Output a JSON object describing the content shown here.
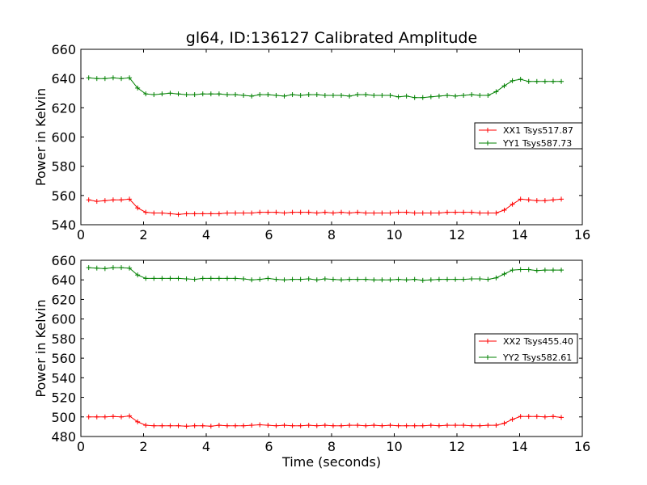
{
  "title": "gl64, ID:136127 Calibrated Amplitude",
  "colors": {
    "XX": "#ff0000",
    "YY": "#008000"
  },
  "chart_data": [
    {
      "type": "line",
      "xlabel": "",
      "ylabel": "Power in Kelvin",
      "xlim": [
        0,
        16
      ],
      "ylim": [
        540,
        660
      ],
      "xticks": [
        0,
        2,
        4,
        6,
        8,
        10,
        12,
        14,
        16
      ],
      "yticks": [
        540,
        560,
        580,
        600,
        620,
        640,
        660
      ],
      "legend_position": "center-right",
      "x": [
        0.25,
        0.51,
        0.77,
        1.03,
        1.29,
        1.55,
        1.81,
        2.07,
        2.33,
        2.59,
        2.85,
        3.11,
        3.37,
        3.63,
        3.89,
        4.15,
        4.41,
        4.67,
        4.93,
        5.19,
        5.45,
        5.71,
        5.97,
        6.23,
        6.49,
        6.75,
        7.01,
        7.27,
        7.53,
        7.79,
        8.05,
        8.31,
        8.57,
        8.83,
        9.09,
        9.35,
        9.61,
        9.87,
        10.13,
        10.39,
        10.65,
        10.91,
        11.17,
        11.43,
        11.69,
        11.95,
        12.21,
        12.47,
        12.73,
        12.99,
        13.25,
        13.51,
        13.77,
        14.03,
        14.29,
        14.55,
        14.81,
        15.07,
        15.33
      ],
      "series": [
        {
          "name": "XX1 Tsys517.87",
          "color": "#ff0000",
          "values": [
            557.0,
            556.0,
            556.5,
            557.0,
            557.0,
            557.5,
            551.5,
            548.5,
            548.0,
            548.0,
            547.5,
            547.0,
            547.5,
            547.5,
            547.5,
            547.5,
            547.5,
            548.0,
            548.0,
            548.0,
            548.0,
            548.5,
            548.5,
            548.5,
            548.0,
            548.5,
            548.5,
            548.5,
            548.0,
            548.5,
            548.0,
            548.5,
            548.0,
            548.5,
            548.0,
            548.0,
            548.0,
            548.0,
            548.5,
            548.5,
            548.0,
            548.0,
            548.0,
            548.0,
            548.5,
            548.5,
            548.5,
            548.5,
            548.0,
            548.0,
            548.0,
            550.0,
            554.0,
            557.5,
            557.0,
            556.5,
            556.5,
            557.0,
            557.5
          ]
        },
        {
          "name": "YY1 Tsys587.73",
          "color": "#008000",
          "values": [
            640.5,
            640.0,
            640.0,
            640.5,
            640.0,
            640.5,
            633.5,
            629.5,
            629.0,
            629.5,
            630.0,
            629.5,
            629.0,
            629.0,
            629.5,
            629.5,
            629.5,
            629.0,
            629.0,
            628.5,
            628.0,
            629.0,
            629.0,
            628.5,
            628.0,
            629.0,
            628.5,
            629.0,
            629.0,
            628.5,
            628.5,
            628.5,
            628.0,
            629.0,
            629.0,
            628.5,
            628.5,
            628.5,
            627.5,
            628.0,
            627.0,
            627.0,
            627.5,
            628.0,
            628.5,
            628.0,
            628.5,
            629.0,
            628.5,
            628.5,
            631.0,
            635.0,
            638.5,
            639.5,
            638.0,
            638.0,
            638.0,
            638.0,
            638.0
          ]
        }
      ]
    },
    {
      "type": "line",
      "xlabel": "Time (seconds)",
      "ylabel": "Power in Kelvin",
      "xlim": [
        0,
        16
      ],
      "ylim": [
        480,
        660
      ],
      "xticks": [
        0,
        2,
        4,
        6,
        8,
        10,
        12,
        14,
        16
      ],
      "yticks": [
        480,
        500,
        520,
        540,
        560,
        580,
        600,
        620,
        640,
        660
      ],
      "legend_position": "center-right",
      "x": [
        0.25,
        0.51,
        0.77,
        1.03,
        1.29,
        1.55,
        1.81,
        2.07,
        2.33,
        2.59,
        2.85,
        3.11,
        3.37,
        3.63,
        3.89,
        4.15,
        4.41,
        4.67,
        4.93,
        5.19,
        5.45,
        5.71,
        5.97,
        6.23,
        6.49,
        6.75,
        7.01,
        7.27,
        7.53,
        7.79,
        8.05,
        8.31,
        8.57,
        8.83,
        9.09,
        9.35,
        9.61,
        9.87,
        10.13,
        10.39,
        10.65,
        10.91,
        11.17,
        11.43,
        11.69,
        11.95,
        12.21,
        12.47,
        12.73,
        12.99,
        13.25,
        13.51,
        13.77,
        14.03,
        14.29,
        14.55,
        14.81,
        15.07,
        15.33
      ],
      "series": [
        {
          "name": "XX2 Tsys455.40",
          "color": "#ff0000",
          "values": [
            500.0,
            500.0,
            500.0,
            500.5,
            500.0,
            501.0,
            495.0,
            491.5,
            491.0,
            491.0,
            491.0,
            491.0,
            490.5,
            491.0,
            491.0,
            490.5,
            491.5,
            491.0,
            491.0,
            491.0,
            491.5,
            492.0,
            491.5,
            491.0,
            491.5,
            491.0,
            491.0,
            491.5,
            491.0,
            491.5,
            491.0,
            491.0,
            491.5,
            491.5,
            491.0,
            491.5,
            491.0,
            491.5,
            491.0,
            491.0,
            491.0,
            491.0,
            491.5,
            491.0,
            491.5,
            491.5,
            491.5,
            491.0,
            491.0,
            491.5,
            491.5,
            493.5,
            497.5,
            500.5,
            500.5,
            500.5,
            500.0,
            500.5,
            499.5
          ]
        },
        {
          "name": "YY2 Tsys582.61",
          "color": "#008000",
          "values": [
            652.5,
            652.0,
            651.5,
            652.5,
            652.5,
            652.0,
            645.0,
            641.5,
            641.5,
            641.5,
            641.5,
            641.5,
            641.0,
            640.5,
            641.5,
            641.5,
            641.5,
            641.5,
            641.5,
            641.0,
            640.0,
            640.5,
            641.5,
            640.5,
            640.0,
            640.5,
            640.5,
            641.0,
            640.0,
            641.0,
            640.5,
            640.0,
            640.5,
            640.5,
            640.5,
            640.0,
            640.0,
            640.0,
            640.5,
            640.0,
            640.5,
            639.5,
            640.0,
            640.5,
            640.5,
            640.5,
            640.5,
            641.0,
            641.0,
            640.5,
            642.0,
            646.0,
            650.0,
            650.5,
            650.5,
            649.5,
            650.0,
            650.0,
            650.0
          ]
        }
      ]
    }
  ]
}
